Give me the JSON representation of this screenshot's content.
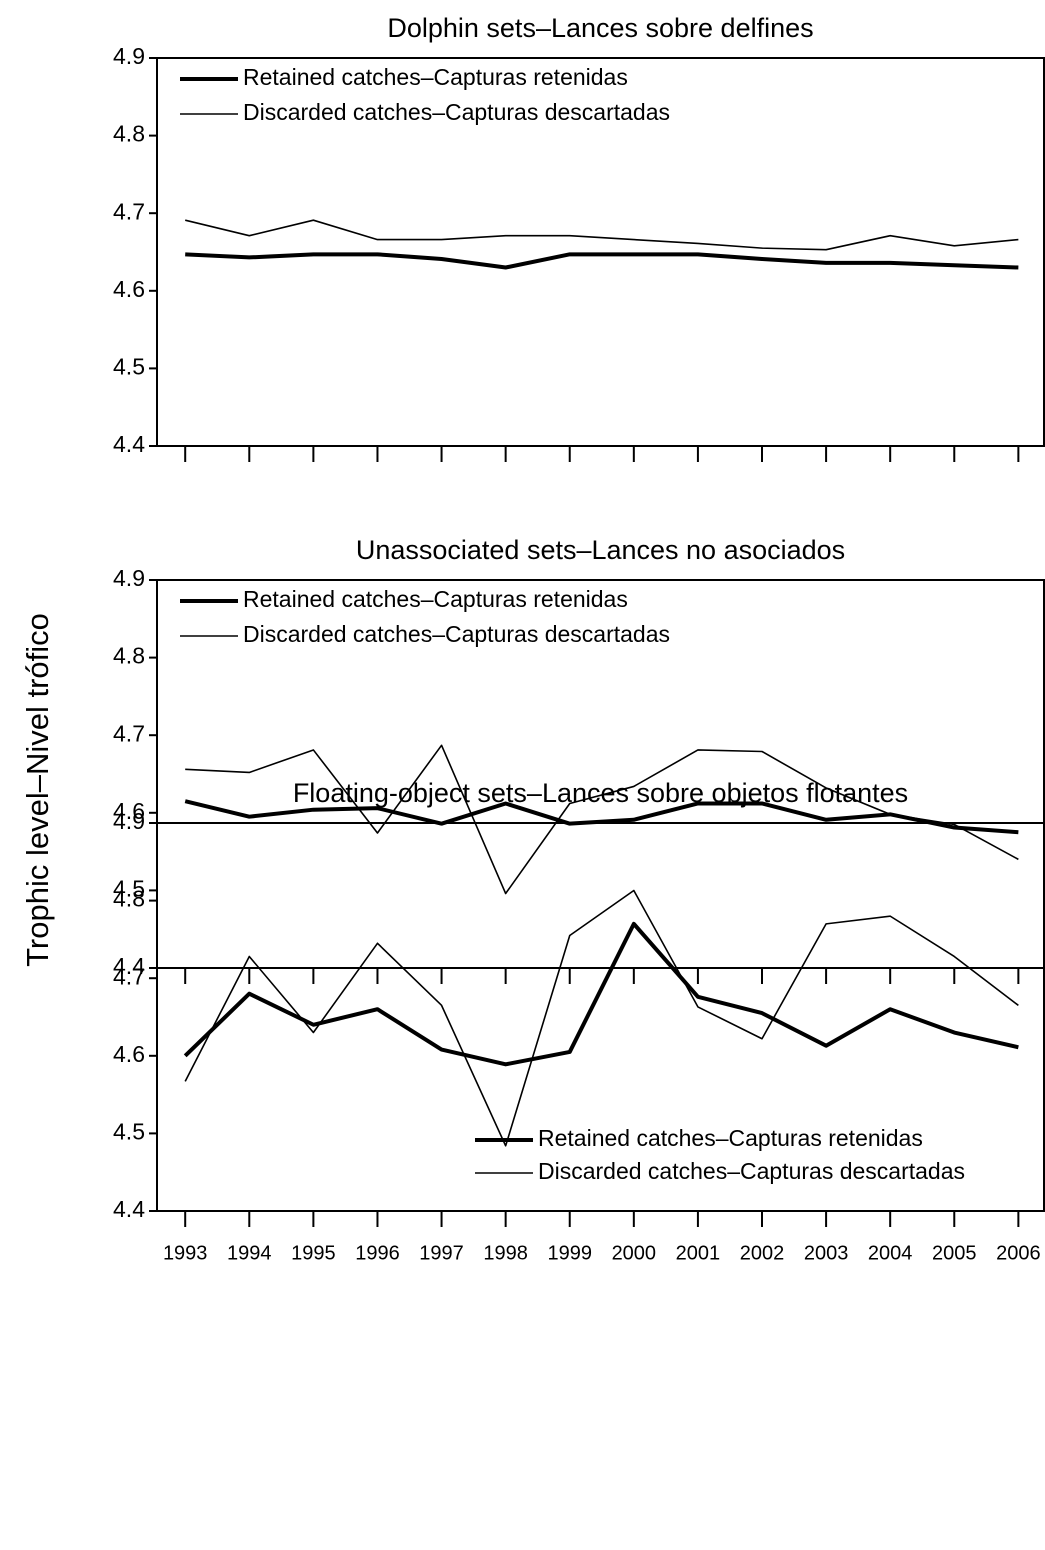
{
  "ylabel": "Trophic level–Nivel trófico",
  "chart_data": [
    {
      "type": "line",
      "title": "Dolphin sets–Lances sobre delfines",
      "x": [
        1993,
        1994,
        1995,
        1996,
        1997,
        1998,
        1999,
        2000,
        2001,
        2002,
        2003,
        2004,
        2005,
        2006
      ],
      "xlim": [
        1992.56,
        2006.4
      ],
      "ylim": [
        4.4,
        4.9
      ],
      "yticks": [
        4.4,
        4.5,
        4.6,
        4.7,
        4.8,
        4.9
      ],
      "legend": "upper left",
      "show_xtick_labels": false,
      "series": [
        {
          "name": "Retained catches–Capturas retenidas",
          "color": "#000000",
          "linewidth": 4,
          "values": [
            4.647,
            4.643,
            4.647,
            4.647,
            4.641,
            4.63,
            4.647,
            4.647,
            4.647,
            4.641,
            4.636,
            4.636,
            4.633,
            4.63
          ]
        },
        {
          "name": "Discarded catches–Capturas descartadas",
          "color": "#000000",
          "linewidth": 1.6,
          "values": [
            4.691,
            4.671,
            4.691,
            4.666,
            4.666,
            4.671,
            4.671,
            4.666,
            4.661,
            4.655,
            4.653,
            4.671,
            4.658,
            4.666
          ]
        }
      ]
    },
    {
      "type": "line",
      "title": "Unassociated sets–Lances no asociados",
      "x": [
        1993,
        1994,
        1995,
        1996,
        1997,
        1998,
        1999,
        2000,
        2001,
        2002,
        2003,
        2004,
        2005,
        2006
      ],
      "xlim": [
        1992.56,
        2006.4
      ],
      "ylim": [
        4.4,
        4.9
      ],
      "yticks": [
        4.4,
        4.5,
        4.6,
        4.7,
        4.8,
        4.9
      ],
      "legend": "upper left",
      "show_xtick_labels": false,
      "series": [
        {
          "name": "Retained catches–Capturas retenidas",
          "color": "#000000",
          "linewidth": 4,
          "values": [
            4.615,
            4.595,
            4.604,
            4.606,
            4.586,
            4.612,
            4.586,
            4.591,
            4.612,
            4.612,
            4.591,
            4.598,
            4.581,
            4.575
          ]
        },
        {
          "name": "Discarded catches–Capturas descartadas",
          "color": "#000000",
          "linewidth": 1.6,
          "values": [
            4.656,
            4.652,
            4.681,
            4.574,
            4.687,
            4.496,
            4.612,
            4.634,
            4.681,
            4.679,
            4.632,
            4.598,
            4.585,
            4.54
          ]
        }
      ]
    },
    {
      "type": "line",
      "title": "Floating-object sets–Lances sobre objetos flotantes",
      "x": [
        1993,
        1994,
        1995,
        1996,
        1997,
        1998,
        1999,
        2000,
        2001,
        2002,
        2003,
        2004,
        2005,
        2006
      ],
      "xlim": [
        1992.56,
        2006.4
      ],
      "ylim": [
        4.4,
        4.9
      ],
      "yticks": [
        4.4,
        4.5,
        4.6,
        4.7,
        4.8,
        4.9
      ],
      "legend": "lower right",
      "show_xtick_labels": true,
      "series": [
        {
          "name": "Retained catches–Capturas retenidas",
          "color": "#000000",
          "linewidth": 4,
          "values": [
            4.6,
            4.68,
            4.64,
            4.66,
            4.608,
            4.589,
            4.605,
            4.77,
            4.676,
            4.655,
            4.613,
            4.66,
            4.63,
            4.611
          ]
        },
        {
          "name": "Discarded catches–Capturas descartadas",
          "color": "#000000",
          "linewidth": 1.6,
          "values": [
            4.567,
            4.728,
            4.63,
            4.745,
            4.665,
            4.484,
            4.755,
            4.813,
            4.663,
            4.622,
            4.77,
            4.78,
            4.728,
            4.665
          ]
        }
      ]
    }
  ]
}
